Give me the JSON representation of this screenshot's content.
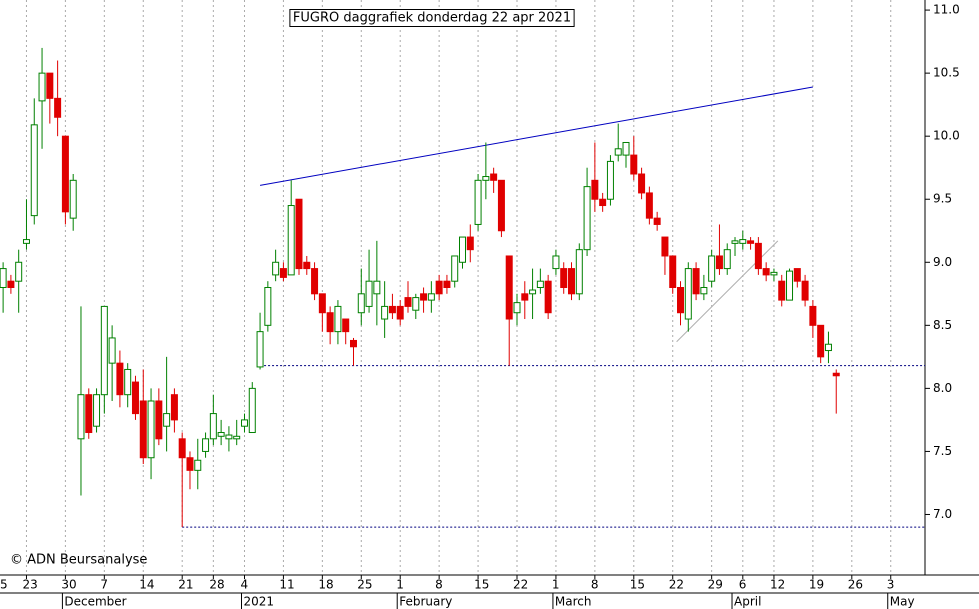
{
  "chart_data": {
    "type": "candlestick",
    "title": "FUGRO daggrafiek donderdag 22 apr 2021",
    "annotation": "© ADN Beursanalyse",
    "up_color": "#008000",
    "down_color": "#e00000",
    "xlim": [
      -0.4,
      118.4
    ],
    "ylim": [
      6.52,
      11.08
    ],
    "yticks": [
      {
        "value": 7.0,
        "label": "7.0"
      },
      7.5,
      {
        "value": 8.0,
        "label": "8.0"
      },
      8.5,
      {
        "value": 9.0,
        "label": "9.0"
      },
      9.5,
      {
        "value": 10.0,
        "label": "10.0"
      },
      10.5,
      {
        "value": 11.0,
        "label": "11.0"
      }
    ],
    "xticks": [
      {
        "value": -2,
        "label": "5"
      },
      {
        "value": 3,
        "label": "23"
      },
      {
        "value": 8,
        "label": "30"
      },
      {
        "value": 13,
        "label": "7"
      },
      {
        "value": 18,
        "label": "14"
      },
      {
        "value": 23,
        "label": "21"
      },
      {
        "value": 27,
        "label": "28"
      },
      {
        "value": 31,
        "label": "4"
      },
      {
        "value": 36,
        "label": "11"
      },
      {
        "value": 41,
        "label": "18"
      },
      {
        "value": 46,
        "label": "25"
      },
      {
        "value": 51,
        "label": "1"
      },
      {
        "value": 56,
        "label": "8"
      },
      {
        "value": 61,
        "label": "15"
      },
      {
        "value": 66,
        "label": "22"
      },
      {
        "value": 71,
        "label": "1"
      },
      {
        "value": 76,
        "label": "8"
      },
      {
        "value": 81,
        "label": "15"
      },
      {
        "value": 86,
        "label": "22"
      },
      {
        "value": 91,
        "label": "29"
      },
      {
        "value": 95,
        "label": "6"
      },
      {
        "value": 99,
        "label": "12"
      },
      {
        "value": 104,
        "label": "19"
      },
      {
        "value": 109,
        "label": "26"
      },
      {
        "value": 114,
        "label": "3"
      }
    ],
    "months": [
      {
        "value": 8,
        "label": "December"
      },
      {
        "value": 31,
        "label": "2021"
      },
      {
        "value": 51,
        "label": "February"
      },
      {
        "value": 71,
        "label": "March"
      },
      {
        "value": 94,
        "label": "April"
      },
      {
        "value": 114,
        "label": "May"
      }
    ],
    "grid": true,
    "open": [
      8.8,
      8.85,
      8.85,
      9.15,
      9.37,
      10.28,
      10.5,
      10.3,
      10.0,
      9.35,
      7.6,
      7.95,
      7.7,
      7.95,
      8.2,
      8.2,
      7.95,
      8.05,
      7.9,
      7.45,
      7.9,
      7.7,
      7.95,
      7.6,
      7.45,
      7.35,
      7.5,
      7.6,
      7.62,
      7.6,
      7.6,
      7.7,
      7.65,
      8.17,
      8.5,
      8.9,
      8.95,
      8.9,
      9.5,
      9.0,
      8.95,
      8.75,
      8.6,
      8.45,
      8.55,
      8.38,
      8.6,
      8.65,
      8.75,
      8.55,
      8.65,
      8.65,
      8.72,
      8.62,
      8.75,
      8.7,
      8.85,
      8.85,
      8.85,
      9.0,
      9.2,
      9.3,
      9.65,
      9.7,
      9.65,
      9.05,
      8.6,
      8.75,
      8.75,
      8.8,
      8.85,
      8.95,
      8.95,
      8.95,
      8.75,
      9.1,
      9.65,
      9.5,
      9.5,
      9.85,
      9.85,
      9.85,
      9.7,
      9.55,
      9.35,
      9.2,
      9.05,
      8.8,
      8.55,
      8.95,
      8.75,
      8.85,
      9.05,
      8.95,
      9.15,
      9.15,
      9.17,
      9.15,
      8.95,
      8.9,
      8.85,
      8.7,
      8.95,
      8.85,
      8.65,
      8.5,
      8.3,
      8.12
    ],
    "high": [
      9.0,
      8.9,
      9.1,
      9.5,
      10.3,
      10.7,
      10.5,
      10.6,
      10.0,
      9.7,
      8.65,
      8.0,
      8.0,
      8.65,
      8.5,
      8.3,
      8.2,
      8.1,
      8.15,
      8.0,
      8.0,
      8.25,
      8.0,
      7.65,
      7.5,
      7.6,
      7.65,
      7.95,
      7.75,
      7.7,
      7.75,
      7.8,
      8.05,
      8.6,
      8.85,
      9.1,
      9.0,
      9.65,
      9.5,
      9.05,
      9.0,
      8.75,
      8.65,
      8.7,
      8.55,
      8.4,
      8.95,
      9.1,
      9.17,
      8.85,
      8.75,
      8.7,
      8.85,
      8.75,
      8.8,
      8.85,
      8.9,
      8.9,
      9.05,
      9.2,
      9.3,
      9.7,
      9.95,
      9.75,
      9.65,
      9.05,
      8.75,
      8.85,
      8.95,
      8.95,
      8.9,
      9.1,
      9.0,
      9.0,
      9.15,
      9.75,
      9.95,
      9.55,
      9.85,
      10.1,
      9.95,
      10.0,
      9.75,
      9.6,
      9.4,
      9.2,
      9.05,
      8.85,
      9.0,
      9.0,
      8.9,
      9.1,
      9.3,
      9.15,
      9.2,
      9.25,
      9.2,
      9.2,
      9.0,
      8.95,
      8.9,
      8.95,
      8.95,
      8.9,
      8.7,
      8.5,
      8.45,
      8.15
    ],
    "low": [
      8.6,
      8.75,
      8.6,
      9.1,
      9.3,
      9.9,
      10.1,
      10.0,
      9.3,
      9.25,
      7.15,
      7.6,
      7.65,
      7.8,
      7.9,
      7.85,
      7.85,
      7.75,
      7.4,
      7.28,
      7.55,
      7.5,
      7.65,
      6.9,
      7.2,
      7.2,
      7.45,
      7.55,
      7.55,
      7.5,
      7.55,
      7.65,
      7.65,
      8.15,
      8.45,
      8.85,
      8.85,
      8.9,
      8.9,
      8.9,
      8.7,
      8.45,
      8.35,
      8.35,
      8.35,
      8.18,
      8.5,
      8.6,
      8.5,
      8.4,
      8.55,
      8.5,
      8.6,
      8.55,
      8.6,
      8.6,
      8.7,
      8.75,
      8.8,
      8.95,
      9.0,
      9.25,
      9.5,
      9.55,
      9.2,
      8.18,
      8.5,
      8.55,
      8.55,
      8.75,
      8.55,
      8.9,
      8.75,
      8.7,
      8.7,
      9.05,
      9.4,
      9.4,
      9.45,
      9.8,
      9.75,
      9.65,
      9.5,
      9.3,
      9.25,
      8.9,
      8.75,
      8.5,
      8.45,
      8.7,
      8.7,
      8.8,
      8.9,
      8.9,
      9.05,
      9.1,
      9.1,
      8.9,
      8.85,
      8.85,
      8.65,
      8.7,
      8.8,
      8.65,
      8.4,
      8.2,
      8.2,
      7.8
    ],
    "close": [
      8.95,
      8.8,
      9.0,
      9.18,
      10.09,
      10.5,
      10.3,
      10.15,
      9.4,
      9.65,
      7.95,
      7.65,
      7.95,
      8.65,
      8.4,
      7.95,
      8.15,
      7.8,
      7.45,
      7.9,
      7.6,
      7.8,
      7.75,
      7.45,
      7.35,
      7.43,
      7.6,
      7.8,
      7.65,
      7.63,
      7.62,
      7.75,
      8.0,
      8.45,
      8.8,
      9.0,
      8.88,
      9.45,
      8.95,
      8.95,
      8.75,
      8.6,
      8.45,
      8.65,
      8.45,
      8.33,
      8.75,
      8.85,
      8.85,
      8.65,
      8.6,
      8.55,
      8.65,
      8.72,
      8.7,
      8.75,
      8.75,
      8.8,
      9.05,
      9.2,
      9.1,
      9.65,
      9.68,
      9.65,
      9.25,
      8.55,
      8.68,
      8.7,
      8.78,
      8.85,
      8.6,
      9.05,
      8.8,
      8.75,
      9.1,
      9.6,
      9.5,
      9.45,
      9.8,
      9.9,
      9.95,
      9.7,
      9.55,
      9.35,
      9.3,
      9.05,
      8.8,
      8.6,
      8.95,
      8.75,
      8.8,
      9.05,
      8.95,
      9.1,
      9.17,
      9.18,
      9.15,
      8.95,
      8.9,
      8.92,
      8.7,
      8.93,
      8.85,
      8.7,
      8.5,
      8.25,
      8.35,
      8.1
    ],
    "lines": [
      {
        "x": [
          33,
          104
        ],
        "y": [
          9.61,
          10.39
        ],
        "color": "#0000c0",
        "style": "solid"
      },
      {
        "x": [
          33,
          118.4
        ],
        "y": [
          8.18,
          8.18
        ],
        "color": "#000080",
        "style": "dotted"
      },
      {
        "x": [
          23,
          118.4
        ],
        "y": [
          6.9,
          6.9
        ],
        "color": "#000080",
        "style": "dotted"
      },
      {
        "x": [
          86.5,
          99.5
        ],
        "y": [
          8.37,
          9.17
        ],
        "color": "#b0b0b0",
        "style": "solid"
      }
    ]
  }
}
